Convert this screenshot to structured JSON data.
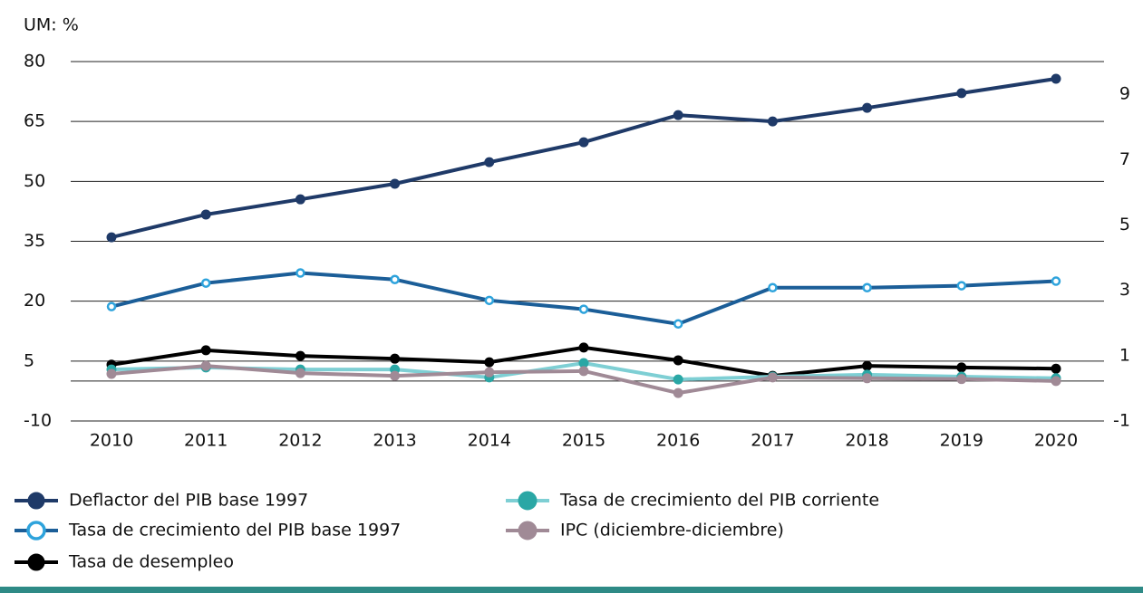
{
  "chart_data": {
    "type": "line",
    "y_label": "UM: %",
    "categories": [
      "2010",
      "2011",
      "2012",
      "2013",
      "2014",
      "2015",
      "2016",
      "2017",
      "2018",
      "2019",
      "2020"
    ],
    "ylim": [
      -10,
      80
    ],
    "yticks": [
      -10,
      5,
      20,
      35,
      50,
      65,
      80
    ],
    "y2lim": [
      -1,
      10
    ],
    "y2ticks": [
      -1,
      1,
      3,
      5,
      7,
      9
    ],
    "grid": true,
    "series": [
      {
        "name": "Deflactor del PIB base 1997",
        "color": "#1f3a68",
        "marker_fill": "#1f3a68",
        "values": [
          36.0,
          41.7,
          45.5,
          49.4,
          54.8,
          59.8,
          66.6,
          65.0,
          68.4,
          72.1,
          75.7
        ]
      },
      {
        "name": "Tasa de crecimiento del PIB base 1997",
        "color": "#1b5e98",
        "marker_fill": "#ffffff",
        "marker_stroke": "#2ea3dc",
        "axis": "y2",
        "values": [
          2.5,
          3.22,
          3.53,
          3.33,
          2.69,
          2.42,
          1.97,
          3.08,
          3.08,
          3.14,
          3.28
        ]
      },
      {
        "name": "Tasa de desempleo",
        "color": "#000000",
        "marker_fill": "#000000",
        "values": [
          4.1,
          7.7,
          6.3,
          5.6,
          4.7,
          8.4,
          5.2,
          1.3,
          3.8,
          3.4,
          3.1
        ]
      },
      {
        "name": "Tasa de crecimiento del PIB corriente",
        "color": "#7ecfd4",
        "marker_fill": "#2aa7a5",
        "values": [
          2.9,
          3.4,
          2.9,
          2.9,
          0.9,
          4.5,
          0.4,
          1.1,
          1.6,
          1.1,
          0.7
        ]
      },
      {
        "name": "IPC (diciembre-diciembre)",
        "color": "#a08a96",
        "marker_fill": "#a08a96",
        "values": [
          1.8,
          3.8,
          2.0,
          1.3,
          2.2,
          2.5,
          -3.0,
          0.9,
          0.7,
          0.5,
          0
        ]
      }
    ]
  }
}
